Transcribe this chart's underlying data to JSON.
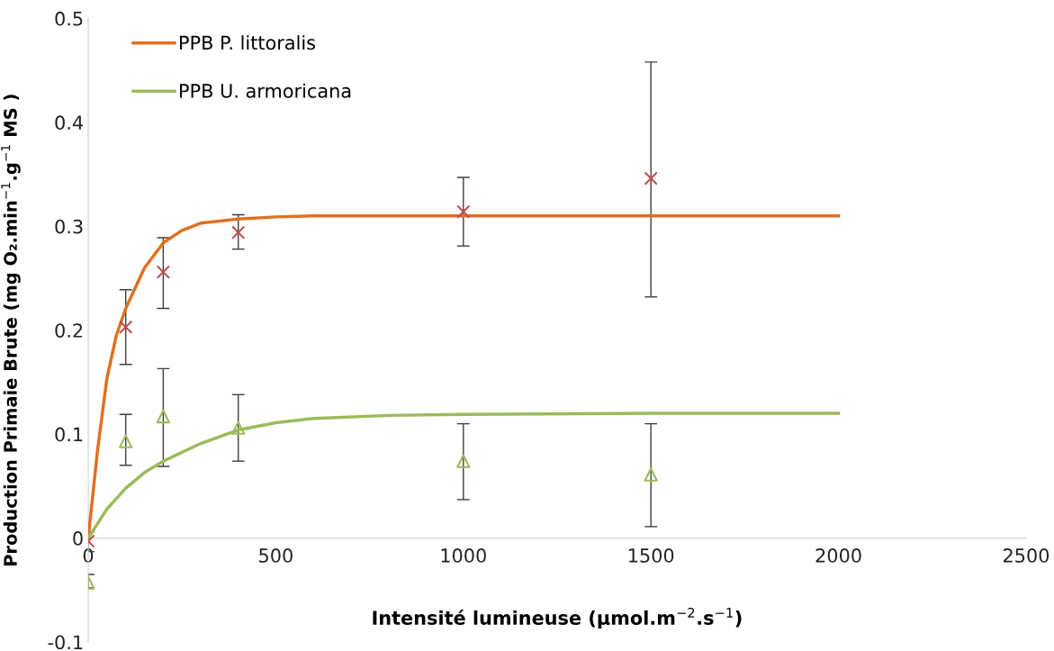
{
  "chart_data": {
    "type": "line",
    "xlabel": "Intensité lumineuse (µmol.m$^{−2}$.s$^{−1}$)",
    "ylabel": "Production Primaie Brute (mg O₂.min$^{−1}$.g$^{−1}$ MS )",
    "xlim": [
      0,
      2500
    ],
    "xticks": [
      0,
      500,
      1000,
      1500,
      2000,
      2500
    ],
    "ylim": [
      -0.1,
      0.5
    ],
    "yticks": [
      -0.1,
      0,
      0.1,
      0.2,
      0.3,
      0.4,
      0.5
    ],
    "legend": "top left",
    "series": [
      {
        "type": "scatter",
        "marker": "cross",
        "color": "#c0504d",
        "x": [
          0,
          100,
          200,
          400,
          1000,
          1500
        ],
        "values": [
          -0.003,
          0.203,
          0.256,
          0.294,
          0.314,
          0.346
        ],
        "errors": [
          [
            -0.013,
            0.006
          ],
          [
            0.167,
            0.239
          ],
          [
            0.221,
            0.289
          ],
          [
            0.278,
            0.311
          ],
          [
            0.281,
            0.347
          ],
          [
            0.232,
            0.458
          ]
        ]
      },
      {
        "type": "scatter",
        "marker": "triangle",
        "color": "#9bbb59",
        "x": [
          0,
          100,
          200,
          400,
          1000,
          1500
        ],
        "values": [
          -0.043,
          0.093,
          0.117,
          0.106,
          0.074,
          0.061
        ],
        "errors": [
          [
            -0.048,
            -0.035
          ],
          [
            0.07,
            0.119
          ],
          [
            0.069,
            0.163
          ],
          [
            0.074,
            0.138
          ],
          [
            0.037,
            0.11
          ],
          [
            0.011,
            0.11
          ]
        ]
      },
      {
        "name": "PPB P. littoralis",
        "color": "#e0701f",
        "x": [
          0,
          25,
          50,
          75,
          100,
          150,
          200,
          250,
          300,
          400,
          500,
          600,
          800,
          1000,
          1500,
          2000
        ],
        "values": [
          0,
          0.085,
          0.154,
          0.195,
          0.221,
          0.26,
          0.284,
          0.296,
          0.303,
          0.307,
          0.309,
          0.31,
          0.31,
          0.31,
          0.31,
          0.31
        ]
      },
      {
        "name": "PPB U. armoricana",
        "color": "#9bbb59",
        "x": [
          0,
          50,
          100,
          150,
          200,
          300,
          400,
          500,
          600,
          800,
          1000,
          1500,
          2000
        ],
        "values": [
          0,
          0.028,
          0.048,
          0.063,
          0.074,
          0.091,
          0.104,
          0.111,
          0.115,
          0.118,
          0.119,
          0.12,
          0.12
        ]
      }
    ]
  }
}
